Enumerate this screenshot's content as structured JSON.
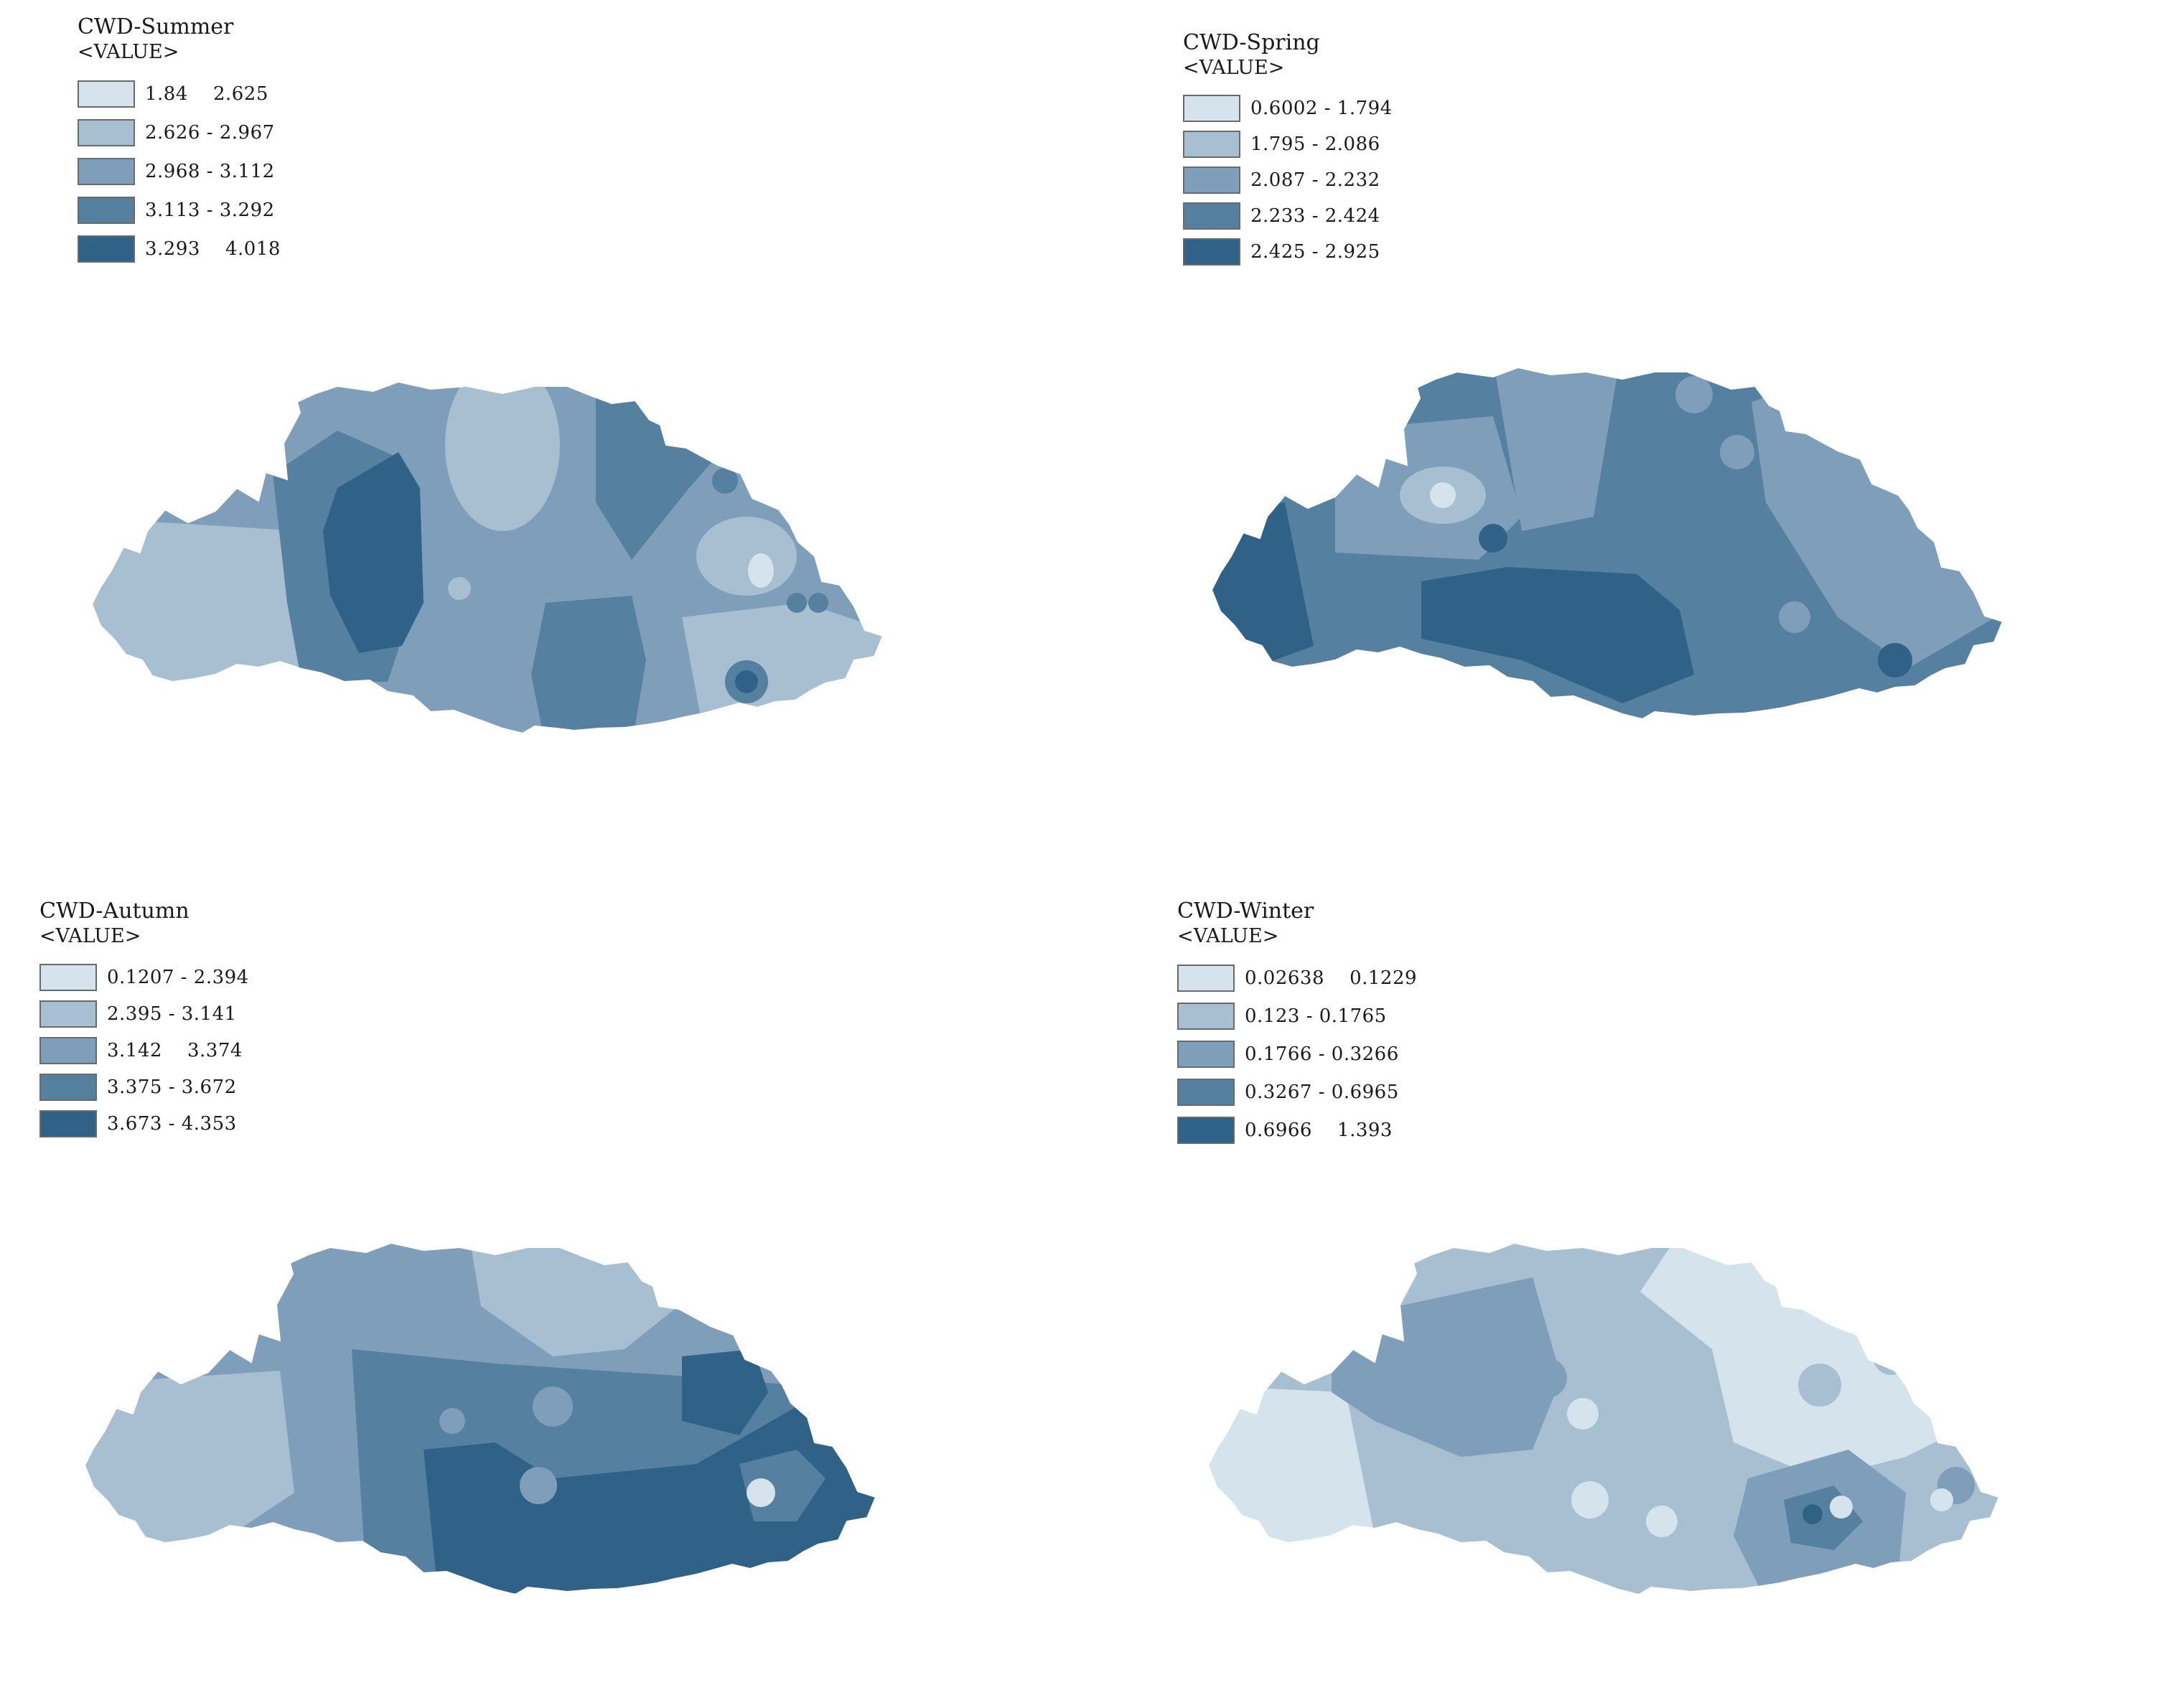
{
  "colors": {
    "class1": "#d5e4ec",
    "class2": "#a7bfd0",
    "class3": "#7f9eba",
    "class4": "#56809f",
    "class5": "#306287",
    "border": "#ffffff"
  },
  "panels": [
    {
      "id": "summer",
      "title": "CWD-Summer",
      "field": "<VALUE>",
      "classes": [
        "1.84    2.625",
        "2.626 - 2.967",
        "2.968 - 3.112",
        "3.113 - 3.292",
        "3.293    4.018"
      ]
    },
    {
      "id": "spring",
      "title": "CWD-Spring",
      "field": "<VALUE>",
      "classes": [
        "0.6002 - 1.794",
        "1.795 - 2.086",
        "2.087 - 2.232",
        "2.233 - 2.424",
        "2.425 - 2.925"
      ]
    },
    {
      "id": "autumn",
      "title": "CWD-Autumn",
      "field": "<VALUE>",
      "classes": [
        "0.1207 - 2.394",
        "2.395 - 3.141",
        "3.142    3.374",
        "3.375 - 3.672",
        "3.673 - 4.353"
      ]
    },
    {
      "id": "winter",
      "title": "CWD-Winter",
      "field": "<VALUE>",
      "classes": [
        "0.02638    0.1229",
        "0.123 - 0.1765",
        "0.1766 - 0.3266",
        "0.3267 - 0.6965",
        "0.6966    1.393"
      ]
    }
  ]
}
